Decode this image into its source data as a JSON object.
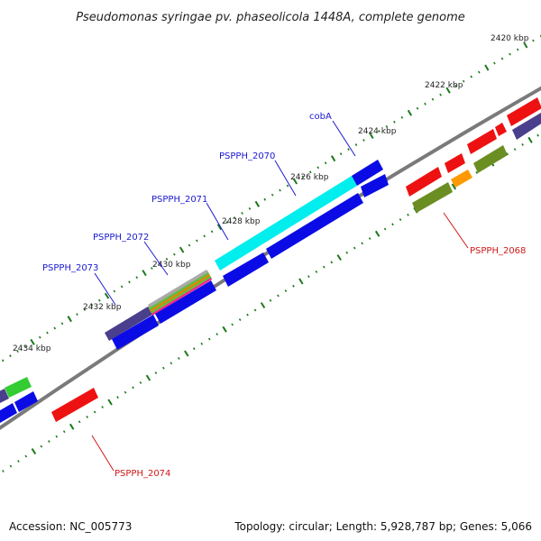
{
  "title": "Pseudomonas syringae pv. phaseolicola 1448A, complete genome",
  "footer": {
    "accession": "Accession: NC_005773",
    "summary": "Topology: circular; Length: 5,928,787 bp; Genes: 5,066"
  },
  "scale_labels": [
    "2420 kbp",
    "2422 kbp",
    "2424 kbp",
    "2426 kbp",
    "2428 kbp",
    "2430 kbp",
    "2432 kbp",
    "2434 kbp"
  ],
  "gene_labels": [
    {
      "name": "cobA",
      "color": "#1a1ad0"
    },
    {
      "name": "PSPPH_2070",
      "color": "#1a1ad0"
    },
    {
      "name": "PSPPH_2071",
      "color": "#1a1ad0"
    },
    {
      "name": "PSPPH_2072",
      "color": "#1a1ad0"
    },
    {
      "name": "PSPPH_2073",
      "color": "#1a1ad0"
    },
    {
      "name": "PSPPH_2068",
      "color": "#d01a1a"
    },
    {
      "name": "PSPPH_2074",
      "color": "#d01a1a"
    }
  ],
  "colors": {
    "backbone": "#808080",
    "tick": "#1a7a1a",
    "cds_blue": "#0b0be6",
    "cds_red": "#ee1111",
    "cds_cyan": "#00eeee",
    "cds_slate": "#4a3f8c",
    "cds_olive": "#6b8e23",
    "cds_orange": "#ff9900",
    "cds_green": "#33cc33"
  }
}
